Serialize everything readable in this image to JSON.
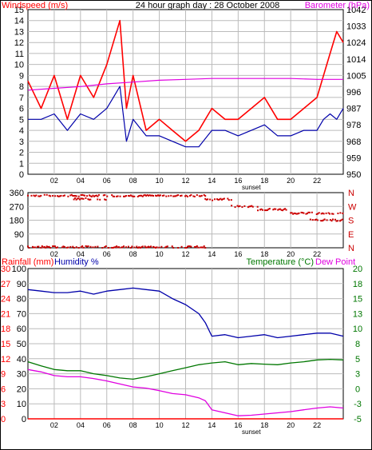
{
  "colors": {
    "wind": "#ff0000",
    "wind_avg": "#0000aa",
    "baro": "#e000e0",
    "dir": "#cc0000",
    "humidity": "#0000aa",
    "temperature": "#007700",
    "dewpoint": "#e000e0",
    "rain": "#ff0000",
    "grid": "#bbbbbb",
    "frame": "#000000",
    "green_label": "#007700"
  },
  "chart_data": [
    {
      "type": "line",
      "title": "24 hour graph day : 28 October 2008",
      "left_axis_label": "Windspeed (m/s)",
      "right_axis_label": "Barometer (hPa)",
      "left_ticks": [
        "0",
        "1",
        "2",
        "3",
        "4",
        "5",
        "6",
        "7",
        "8",
        "9",
        "10",
        "11",
        "12",
        "13",
        "14",
        "15"
      ],
      "right_ticks": [
        "950",
        "959",
        "968",
        "978",
        "987",
        "996",
        "1005",
        "1014",
        "1024",
        "1033",
        "1042"
      ],
      "x_ticks": [
        "02",
        "04",
        "06",
        "08",
        "10",
        "12",
        "14",
        "16",
        "18",
        "20",
        "22"
      ],
      "x_marker": "sunset",
      "ylim": [
        0,
        15
      ],
      "y2lim": [
        950,
        1042
      ],
      "series": [
        {
          "key": "wind_gust",
          "color_key": "wind",
          "x": [
            0,
            1,
            2,
            3,
            4,
            5,
            6,
            6.5,
            7,
            7.5,
            8,
            9,
            10,
            11,
            12,
            13,
            14,
            15,
            16,
            17,
            18,
            19,
            20,
            21,
            22,
            22.5,
            23,
            23.5,
            24
          ],
          "y": [
            8.5,
            6,
            9,
            5,
            9,
            7,
            10,
            12,
            14,
            6,
            9,
            4,
            5,
            4,
            3,
            4,
            6,
            5,
            5,
            6,
            7,
            5,
            5,
            6,
            7,
            9,
            11,
            13,
            12
          ]
        },
        {
          "key": "wind_avg",
          "color_key": "wind_avg",
          "x": [
            0,
            1,
            2,
            3,
            4,
            5,
            6,
            6.5,
            7,
            7.5,
            8,
            9,
            10,
            11,
            12,
            13,
            14,
            15,
            16,
            17,
            18,
            19,
            20,
            21,
            22,
            22.5,
            23,
            23.5,
            24
          ],
          "y": [
            5,
            5,
            5.5,
            4,
            5.5,
            5,
            6,
            7,
            8,
            3,
            5,
            3.5,
            3.5,
            3,
            2.5,
            2.5,
            4,
            4,
            3.5,
            4,
            4.5,
            3.5,
            3.5,
            4,
            4,
            5,
            5.5,
            5,
            6
          ]
        },
        {
          "key": "barometer",
          "color_key": "baro",
          "x": [
            0,
            2,
            4,
            6,
            8,
            10,
            12,
            14,
            16,
            18,
            20,
            22,
            24
          ],
          "y": [
            997,
            998,
            999,
            1000.5,
            1001.5,
            1002.5,
            1003,
            1003.5,
            1003.5,
            1003.5,
            1003.5,
            1003,
            1003
          ],
          "axis": "right"
        }
      ]
    },
    {
      "type": "scatter",
      "left_ticks": [
        "0",
        "90",
        "180",
        "270",
        "360"
      ],
      "right_ticks": [
        "N",
        "E",
        "S",
        "W",
        "N"
      ],
      "x_ticks": [
        "02",
        "04",
        "06",
        "08",
        "10",
        "12",
        "14",
        "16",
        "18",
        "20",
        "22"
      ],
      "x_marker": "sunset",
      "ylim": [
        0,
        360
      ],
      "clusters": [
        {
          "x0": 0,
          "x1": 13.5,
          "y": 340
        },
        {
          "x0": 0,
          "x1": 13.5,
          "y": 5
        },
        {
          "x0": 3.5,
          "x1": 6,
          "y": 318
        },
        {
          "x0": 13.5,
          "x1": 15.5,
          "y": 315
        },
        {
          "x0": 15.5,
          "x1": 17.5,
          "y": 270
        },
        {
          "x0": 17.5,
          "x1": 20,
          "y": 250
        },
        {
          "x0": 20,
          "x1": 24,
          "y": 225
        },
        {
          "x0": 21.5,
          "x1": 24,
          "y": 180
        }
      ]
    },
    {
      "type": "line",
      "left_label_1": "Rainfall (mm)",
      "left_label_2": "Humidity %",
      "right_label_1": "Temperature (°C)",
      "right_label_2": "Dew Point",
      "rain_ticks": [
        "0",
        "3",
        "6",
        "9",
        "12",
        "15",
        "18",
        "21",
        "24",
        "27",
        "30"
      ],
      "humidity_ticks": [
        "0",
        "10",
        "20",
        "30",
        "40",
        "50",
        "60",
        "70",
        "80",
        "90",
        "100"
      ],
      "temp_ticks": [
        "-5",
        "-2.5",
        "0",
        "2.5",
        "5",
        "7.5",
        "10",
        "12.5",
        "15",
        "17.5",
        "20"
      ],
      "right_ticks": [
        "20",
        "18",
        "15",
        "13",
        "10",
        "8",
        "5",
        "3",
        "0",
        "-3",
        "-5"
      ],
      "x_ticks": [
        "02",
        "04",
        "06",
        "08",
        "10",
        "12",
        "14",
        "16",
        "18",
        "20",
        "22"
      ],
      "x_marker": "sunset",
      "ylim_humidity": [
        0,
        100
      ],
      "ylim_temp": [
        -5,
        20
      ],
      "series": [
        {
          "key": "humidity",
          "color_key": "humidity",
          "axis": "humidity",
          "x": [
            0,
            1,
            2,
            3,
            4,
            5,
            6,
            7,
            8,
            9,
            10,
            11,
            12,
            13,
            13.5,
            14,
            15,
            16,
            17,
            18,
            19,
            20,
            21,
            22,
            23,
            24
          ],
          "y": [
            86,
            85,
            84,
            84,
            85,
            83,
            85,
            86,
            87,
            86,
            85,
            80,
            76,
            70,
            64,
            55,
            56,
            54,
            55,
            56,
            54,
            55,
            56,
            57,
            57,
            55
          ]
        },
        {
          "key": "temperature",
          "color_key": "temperature",
          "axis": "temp",
          "x": [
            0,
            1,
            2,
            3,
            4,
            5,
            6,
            7,
            8,
            9,
            10,
            11,
            12,
            13,
            14,
            15,
            16,
            17,
            18,
            19,
            20,
            21,
            22,
            23,
            24
          ],
          "y": [
            4.5,
            3.8,
            3.2,
            3,
            3,
            2.5,
            2.2,
            1.8,
            1.6,
            2,
            2.5,
            3,
            3.5,
            4,
            4.3,
            4.5,
            4,
            4.2,
            4.1,
            4,
            4.3,
            4.5,
            4.8,
            4.9,
            4.8
          ]
        },
        {
          "key": "dewpoint",
          "color_key": "dewpoint",
          "axis": "temp",
          "x": [
            0,
            1,
            2,
            3,
            4,
            5,
            6,
            7,
            8,
            9,
            10,
            11,
            12,
            13,
            13.5,
            14,
            15,
            16,
            17,
            18,
            19,
            20,
            21,
            22,
            23,
            24
          ],
          "y": [
            3.2,
            2.8,
            2.2,
            2,
            2,
            1.7,
            1.3,
            0.8,
            0.3,
            0.1,
            -0.3,
            -0.8,
            -1,
            -1.5,
            -2,
            -3.5,
            -4,
            -4.5,
            -4.4,
            -4.2,
            -4,
            -3.8,
            -3.5,
            -3.2,
            -3,
            -3.2
          ]
        },
        {
          "key": "rainfall",
          "color_key": "rain",
          "axis": "humidity",
          "x": [
            0,
            24
          ],
          "y": [
            0,
            0
          ]
        }
      ]
    }
  ]
}
